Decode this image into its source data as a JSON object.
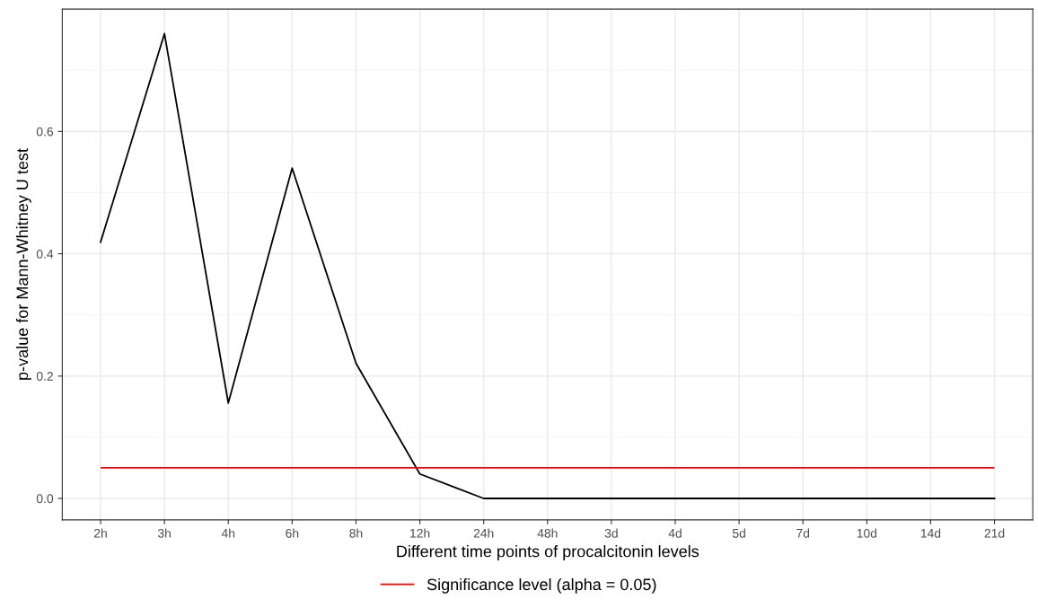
{
  "chart_data": {
    "type": "line",
    "xlabel": "Different time points of procalcitonin levels",
    "ylabel": "p-value for Mann-Whitney U test",
    "categories": [
      "2h",
      "3h",
      "4h",
      "6h",
      "8h",
      "12h",
      "24h",
      "48h",
      "3d",
      "4d",
      "5d",
      "7d",
      "10d",
      "14d",
      "21d"
    ],
    "series": [
      {
        "color": "#000000",
        "values": [
          0.419,
          0.76,
          0.156,
          0.54,
          0.221,
          0.04,
          0,
          0,
          0,
          0,
          0,
          0,
          0,
          0,
          0
        ]
      }
    ],
    "ref_lines": [
      {
        "axis": "y",
        "value": 0.05,
        "label": "Significance level (alpha = 0.05)",
        "color": "#ff0000"
      }
    ],
    "ylim": [
      -0.035,
      0.8
    ],
    "yticks": [
      {
        "value": 0,
        "label": "0.0"
      },
      {
        "value": 0.2,
        "label": "0.2"
      },
      {
        "value": 0.4,
        "label": "0.4"
      },
      {
        "value": 0.6,
        "label": "0.6"
      }
    ],
    "grid": true,
    "legend": "bottom"
  }
}
